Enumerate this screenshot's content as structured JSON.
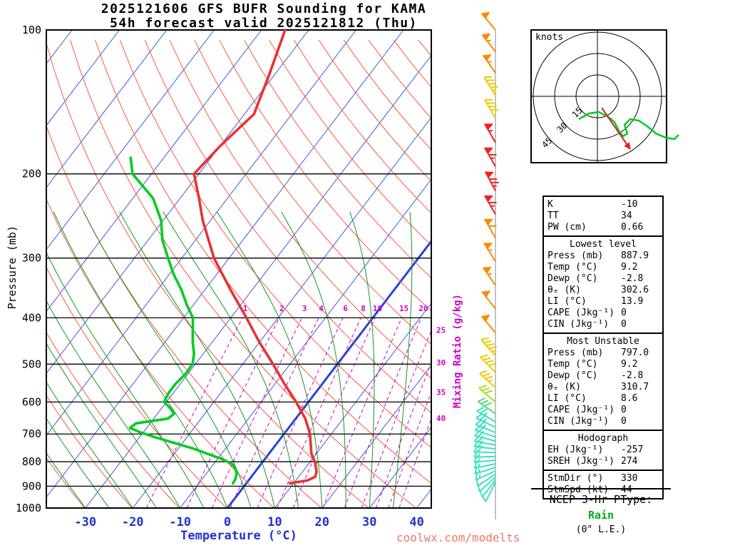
{
  "title": {
    "line1": "2025121606 GFS BUFR Sounding for KAMA",
    "line2": "54h forecast valid 2025121812 (Thu)"
  },
  "axes": {
    "pressure_label": "Pressure (mb)",
    "temperature_label": "Temperature (°C)",
    "mixing_ratio_label": "Mixing Ratio (g/kg)"
  },
  "watermark": "coolwx.com/modelts",
  "hodograph_panel": {
    "unit_label": "knots"
  },
  "stats": {
    "summary": [
      [
        "K",
        "-10"
      ],
      [
        "TT",
        "34"
      ],
      [
        "PW (cm)",
        "0.66"
      ]
    ],
    "sections": [
      {
        "title": "Lowest level",
        "rows": [
          [
            "Press (mb)",
            "887.9"
          ],
          [
            "Temp (°C)",
            "9.2"
          ],
          [
            "Dewp (°C)",
            "-2.8"
          ],
          [
            "θₑ (K)",
            "302.6"
          ],
          [
            "LI (°C)",
            "13.9"
          ],
          [
            "CAPE (Jkg⁻¹)",
            "0"
          ],
          [
            "CIN (Jkg⁻¹)",
            "0"
          ]
        ]
      },
      {
        "title": "Most Unstable",
        "rows": [
          [
            "Press (mb)",
            "797.0"
          ],
          [
            "Temp (°C)",
            "9.2"
          ],
          [
            "Dewp (°C)",
            "-2.8"
          ],
          [
            "θₑ (K)",
            "310.7"
          ],
          [
            "LI (°C)",
            "8.6"
          ],
          [
            "CAPE (Jkg⁻¹)",
            "0"
          ],
          [
            "CIN (Jkg⁻¹)",
            "0"
          ]
        ]
      },
      {
        "title": "Hodograph",
        "rows": [
          [
            "EH (Jkg⁻¹)",
            "-257"
          ],
          [
            "SREH (Jkg⁻¹)",
            "274"
          ]
        ],
        "rows2": [
          [
            "StmDir (°)",
            "330"
          ],
          [
            "StmSpd (kt)",
            "44"
          ]
        ]
      }
    ]
  },
  "ptype": {
    "title": "NCEP 3-Hr PType:",
    "value": "Rain",
    "note": "(0\" L.E.)"
  },
  "chart_data": {
    "type": "skewt-log-p-sounding",
    "station": "KAMA",
    "pressure_ticks": [
      100,
      200,
      300,
      400,
      500,
      600,
      700,
      800,
      900,
      1000
    ],
    "temp_ticks": [
      -30,
      -20,
      -10,
      0,
      10,
      20,
      30,
      40
    ],
    "isotherms_C": {
      "from": -120,
      "to": 40,
      "step": 10,
      "highlight": 0
    },
    "dry_adiabats_K": {
      "from": 243,
      "to": 473,
      "step": 10
    },
    "moist_adiabats_C": {
      "from": -30,
      "to": 35,
      "step": 5
    },
    "mixing_ratio_values": [
      1,
      2,
      3,
      4,
      6,
      8,
      10,
      15,
      20,
      25,
      30,
      35,
      40
    ],
    "mixing_ratio_upper_labels": [
      1,
      2,
      3,
      4,
      6,
      8,
      10,
      15,
      20
    ],
    "mixing_ratio_right_labels": [
      25,
      30,
      35,
      40
    ],
    "temperature_profile": [
      [
        888,
        9.2
      ],
      [
        875,
        12.5
      ],
      [
        860,
        13.5
      ],
      [
        840,
        13.0
      ],
      [
        820,
        12.0
      ],
      [
        800,
        11.0
      ],
      [
        770,
        9.0
      ],
      [
        750,
        8.0
      ],
      [
        700,
        5.5
      ],
      [
        650,
        2.0
      ],
      [
        600,
        -2.6
      ],
      [
        550,
        -8.0
      ],
      [
        500,
        -13.6
      ],
      [
        450,
        -20.0
      ],
      [
        400,
        -26.7
      ],
      [
        350,
        -34.5
      ],
      [
        300,
        -43.2
      ],
      [
        250,
        -51.7
      ],
      [
        225,
        -56.0
      ],
      [
        200,
        -61.0
      ],
      [
        175,
        -60.0
      ],
      [
        150,
        -58.0
      ],
      [
        125,
        -61.0
      ],
      [
        100,
        -65.0
      ]
    ],
    "dewpoint_profile": [
      [
        888,
        -2.8
      ],
      [
        870,
        -3.0
      ],
      [
        850,
        -3.5
      ],
      [
        830,
        -4.5
      ],
      [
        810,
        -6.0
      ],
      [
        790,
        -9.0
      ],
      [
        770,
        -13.0
      ],
      [
        750,
        -17.0
      ],
      [
        730,
        -22.0
      ],
      [
        710,
        -27.0
      ],
      [
        695,
        -30.5
      ],
      [
        680,
        -33.5
      ],
      [
        665,
        -33.0
      ],
      [
        650,
        -27.0
      ],
      [
        635,
        -26.5
      ],
      [
        620,
        -28.0
      ],
      [
        600,
        -30.5
      ],
      [
        575,
        -31.0
      ],
      [
        550,
        -31.0
      ],
      [
        525,
        -30.5
      ],
      [
        500,
        -30.6
      ],
      [
        475,
        -32.0
      ],
      [
        450,
        -34.1
      ],
      [
        425,
        -36.0
      ],
      [
        400,
        -38.0
      ],
      [
        375,
        -41.5
      ],
      [
        350,
        -44.9
      ],
      [
        325,
        -49.0
      ],
      [
        300,
        -52.9
      ],
      [
        275,
        -57.0
      ],
      [
        250,
        -60.5
      ],
      [
        225,
        -65.7
      ],
      [
        200,
        -74.0
      ],
      [
        185,
        -77.0
      ]
    ],
    "winds": [
      [
        100,
        50,
        320,
        "#ff8800"
      ],
      [
        111,
        55,
        322,
        "#ff8800"
      ],
      [
        123,
        55,
        325,
        "#ff8800"
      ],
      [
        137,
        45,
        328,
        "#eecc00"
      ],
      [
        153,
        40,
        330,
        "#eecc00"
      ],
      [
        172,
        55,
        330,
        "#ee2222"
      ],
      [
        193,
        65,
        330,
        "#ee2222"
      ],
      [
        217,
        75,
        332,
        "#ee2222"
      ],
      [
        243,
        65,
        330,
        "#ee2222"
      ],
      [
        272,
        60,
        330,
        "#ff8800"
      ],
      [
        305,
        55,
        328,
        "#ff8800"
      ],
      [
        342,
        55,
        325,
        "#ff8800"
      ],
      [
        383,
        50,
        322,
        "#ff8800"
      ],
      [
        430,
        50,
        320,
        "#ff8800"
      ],
      [
        480,
        45,
        318,
        "#eecc00"
      ],
      [
        520,
        40,
        315,
        "#eecc00"
      ],
      [
        560,
        35,
        312,
        "#eecc00"
      ],
      [
        600,
        30,
        310,
        "#aadd22"
      ],
      [
        635,
        28,
        305,
        "#55dd77"
      ],
      [
        660,
        25,
        300,
        "#3fe0c0"
      ],
      [
        678,
        24,
        296,
        "#3fe0c0"
      ],
      [
        695,
        23,
        292,
        "#3fe0c0"
      ],
      [
        710,
        22,
        288,
        "#3fe0c0"
      ],
      [
        724,
        21,
        284,
        "#3fe0c0"
      ],
      [
        738,
        20,
        280,
        "#3fe0c0"
      ],
      [
        752,
        19,
        276,
        "#3fe0c0"
      ],
      [
        766,
        18,
        272,
        "#3fe0c0"
      ],
      [
        780,
        17,
        268,
        "#3fe0c0"
      ],
      [
        794,
        16,
        264,
        "#3fe0c0"
      ],
      [
        808,
        15,
        258,
        "#3fe0c0"
      ],
      [
        822,
        14,
        252,
        "#3fe0c0"
      ],
      [
        836,
        13,
        245,
        "#3fe0c0"
      ],
      [
        850,
        12,
        237,
        "#3fe0c0"
      ],
      [
        862,
        11,
        228,
        "#3fe0c0"
      ],
      [
        874,
        10,
        218,
        "#3fe0c0"
      ],
      [
        884,
        10,
        207,
        "#3fe0c0"
      ]
    ],
    "hodograph": {
      "rings_kt": [
        15,
        30,
        45
      ],
      "unit": "knots",
      "trace_uv": [
        [
          -13,
          -16
        ],
        [
          -6,
          -12
        ],
        [
          1,
          -11
        ],
        [
          7,
          -14
        ],
        [
          12,
          -18
        ],
        [
          15,
          -24
        ],
        [
          18,
          -28
        ],
        [
          21,
          -26
        ],
        [
          19,
          -20
        ],
        [
          23,
          -16
        ],
        [
          29,
          -17
        ],
        [
          35,
          -21
        ],
        [
          41,
          -26
        ],
        [
          48,
          -29
        ],
        [
          54,
          -30
        ],
        [
          57,
          -27
        ]
      ],
      "storm_line_uv": [
        [
          3,
          -8
        ],
        [
          23,
          -37
        ]
      ],
      "storm_dir_deg": 330,
      "storm_spd_kt": 44
    },
    "colors": {
      "isotherm": "#4455dd",
      "isotherm_bold": "#2244dd",
      "dry_adiabat": "#ff5544",
      "moist_adiabat": "#119922",
      "mixing_ratio": "#cc00cc",
      "temperature": "#e63333",
      "dewpoint": "#00cc22",
      "axis_blue": "#2233cc",
      "barb_line": "#999999",
      "storm_red": "#dd2222",
      "rain_green": "#00aa22"
    }
  }
}
